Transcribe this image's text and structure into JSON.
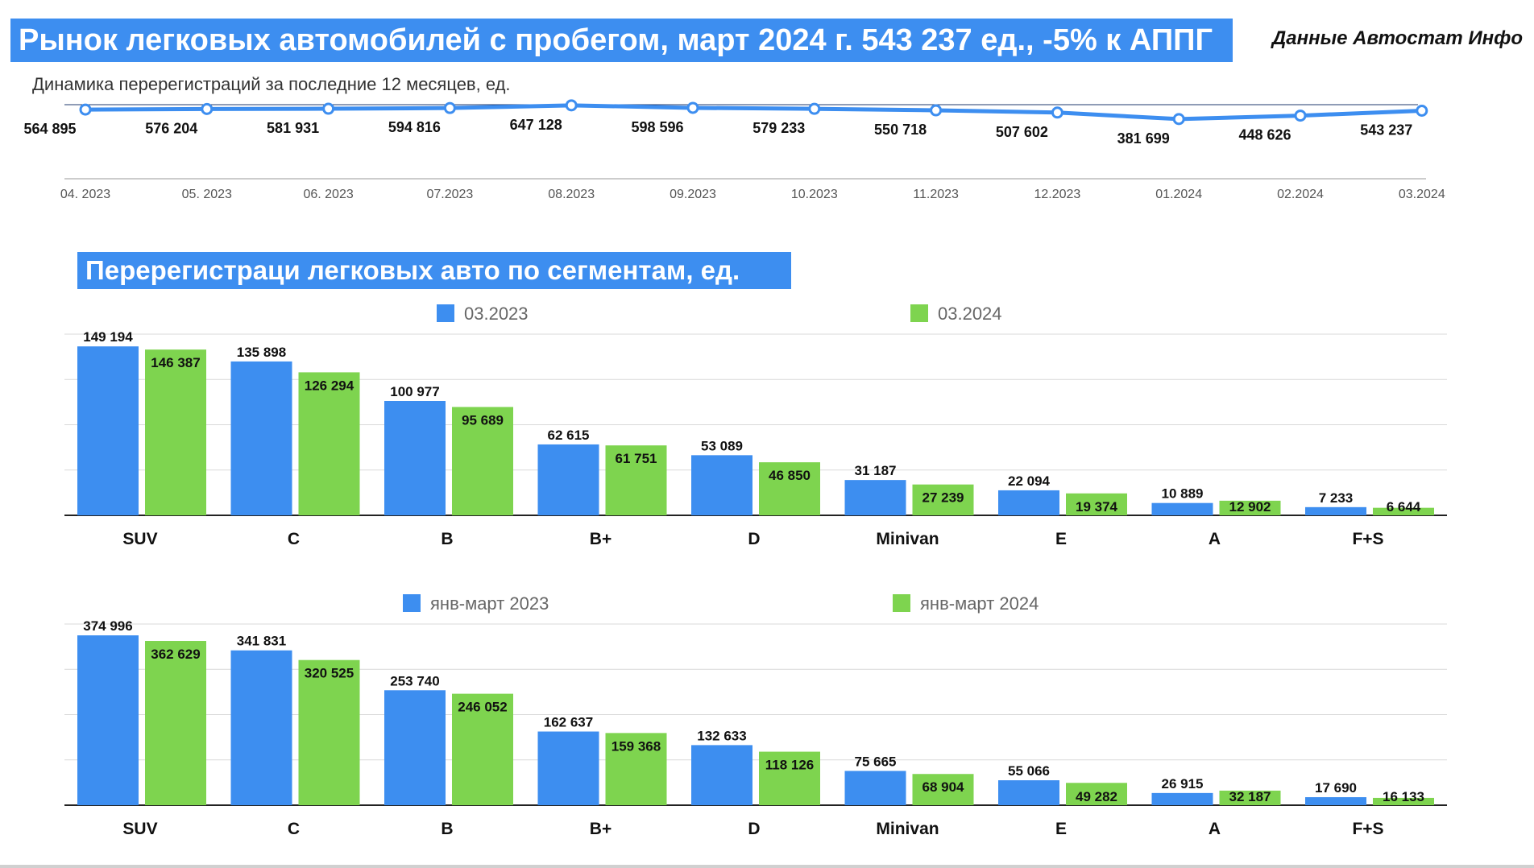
{
  "header": {
    "title": "Рынок легковых автомобилей с пробегом, март 2024 г. 543 237 ед., -5% к АППГ",
    "source": "Данные Автостат Инфо",
    "subtitle": "Динамика перерегистраций за последние 12 месяцев, ед."
  },
  "segments_title": "Перерегистраци легковых авто по сегментам, ед.",
  "colors": {
    "blue": "#3d8ef0",
    "green": "#7ed44f",
    "banner": "#3d8ef0"
  },
  "chart_data": [
    {
      "type": "line",
      "title": "Динамика перерегистраций за последние 12 месяцев, ед.",
      "x": [
        "04. 2023",
        "05. 2023",
        "06. 2023",
        "07.2023",
        "08.2023",
        "09.2023",
        "10.2023",
        "11.2023",
        "12.2023",
        "01.2024",
        "02.2024",
        "03.2024"
      ],
      "values": [
        564895,
        576204,
        581931,
        594816,
        647128,
        598596,
        579233,
        550718,
        507602,
        381699,
        448626,
        543237
      ],
      "labels": [
        "564 895",
        "576 204",
        "581 931",
        "594 816",
        "647 128",
        "598 596",
        "579 233",
        "550 718",
        "507 602",
        "381 699",
        "448 626",
        "543 237"
      ],
      "ylim": [
        -1100000,
        660000
      ]
    },
    {
      "type": "bar",
      "categories": [
        "SUV",
        "C",
        "B",
        "B+",
        "D",
        "Minivan",
        "E",
        "A",
        "F+S"
      ],
      "series": [
        {
          "name": "03.2023",
          "values": [
            149194,
            135898,
            100977,
            62615,
            53089,
            31187,
            22094,
            10889,
            7233
          ],
          "labels": [
            "149 194",
            "135 898",
            "100 977",
            "62 615",
            "53 089",
            "31 187",
            "22 094",
            "10 889",
            "7 233"
          ]
        },
        {
          "name": "03.2024",
          "values": [
            146387,
            126294,
            95689,
            61751,
            46850,
            27239,
            19374,
            12902,
            6644
          ],
          "labels": [
            "146 387",
            "126 294",
            "95 689",
            "61 751",
            "46 850",
            "27 239",
            "19 374",
            "12 902",
            "6 644"
          ]
        }
      ],
      "ylim": [
        0,
        160000
      ],
      "grid": true
    },
    {
      "type": "bar",
      "categories": [
        "SUV",
        "C",
        "B",
        "B+",
        "D",
        "Minivan",
        "E",
        "A",
        "F+S"
      ],
      "series": [
        {
          "name": "янв-март 2023",
          "values": [
            374996,
            341831,
            253740,
            162637,
            132633,
            75665,
            55066,
            26915,
            17690
          ],
          "labels": [
            "374 996",
            "341 831",
            "253 740",
            "162 637",
            "132 633",
            "75 665",
            "55 066",
            "26 915",
            "17 690"
          ]
        },
        {
          "name": "янв-март 2024",
          "values": [
            362629,
            320525,
            246052,
            159368,
            118126,
            68904,
            49282,
            32187,
            16133
          ],
          "labels": [
            "362 629",
            "320 525",
            "246 052",
            "159 368",
            "118 126",
            "68 904",
            "49 282",
            "32 187",
            "16 133"
          ]
        }
      ],
      "ylim": [
        0,
        400000
      ],
      "grid": true
    }
  ]
}
